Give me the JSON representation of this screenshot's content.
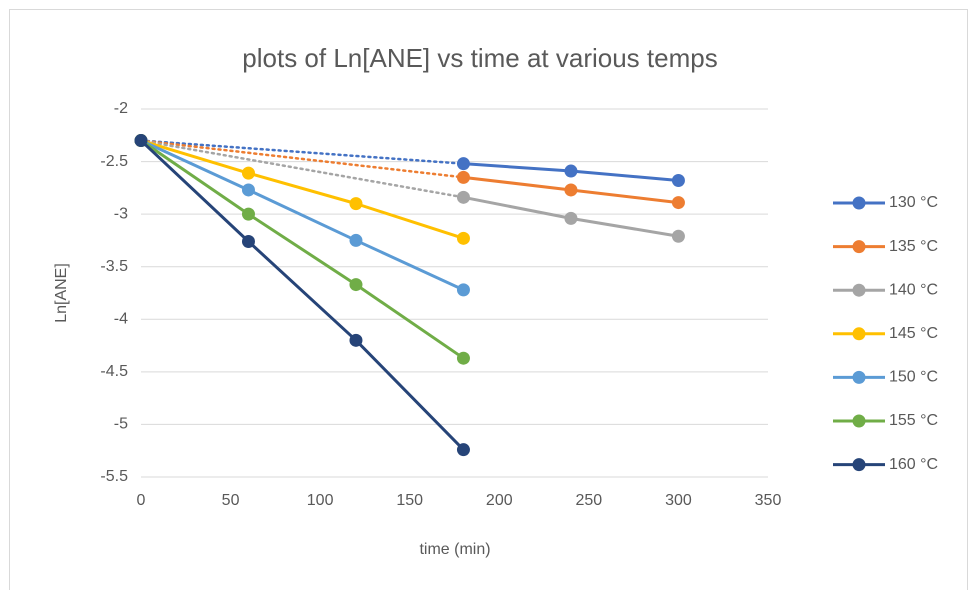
{
  "chart_data": {
    "type": "line",
    "title": "plots of Ln[ANE] vs time at various temps",
    "x_label": "time (min)",
    "y_label": "Ln[ANE]",
    "xlim": [
      0,
      350
    ],
    "xticks": [
      0,
      50,
      100,
      150,
      200,
      250,
      300,
      350
    ],
    "ylim": [
      -5.5,
      -2
    ],
    "yticks": [
      -2,
      -2.5,
      -3,
      -3.5,
      -4,
      -4.5,
      -5,
      -5.5
    ],
    "grid": true,
    "legend": "right",
    "series": [
      {
        "name": "130 °C",
        "color": "#4472c4",
        "first_segment": "dotted",
        "x": [
          0,
          180,
          240,
          300
        ],
        "values": [
          -2.3,
          -2.52,
          -2.59,
          -2.68
        ]
      },
      {
        "name": "135 °C",
        "color": "#ed7d31",
        "first_segment": "dotted",
        "x": [
          0,
          180,
          240,
          300
        ],
        "values": [
          -2.3,
          -2.65,
          -2.77,
          -2.89
        ]
      },
      {
        "name": "140 °C",
        "color": "#a5a5a5",
        "first_segment": "dotted",
        "x": [
          0,
          180,
          240,
          300
        ],
        "values": [
          -2.3,
          -2.84,
          -3.04,
          -3.21
        ]
      },
      {
        "name": "145 °C",
        "color": "#ffc000",
        "first_segment": "solid",
        "x": [
          0,
          60,
          120,
          180
        ],
        "values": [
          -2.3,
          -2.61,
          -2.9,
          -3.23
        ]
      },
      {
        "name": "150 °C",
        "color": "#5b9bd5",
        "first_segment": "solid",
        "x": [
          0,
          60,
          120,
          180
        ],
        "values": [
          -2.3,
          -2.77,
          -3.25,
          -3.72
        ]
      },
      {
        "name": "155 °C",
        "color": "#70ad47",
        "first_segment": "solid",
        "x": [
          0,
          60,
          120,
          180
        ],
        "values": [
          -2.3,
          -3.0,
          -3.67,
          -4.37
        ]
      },
      {
        "name": "160 °C",
        "color": "#264478",
        "first_segment": "solid",
        "x": [
          0,
          60,
          120,
          180
        ],
        "values": [
          -2.3,
          -3.26,
          -4.2,
          -5.24
        ]
      }
    ]
  }
}
